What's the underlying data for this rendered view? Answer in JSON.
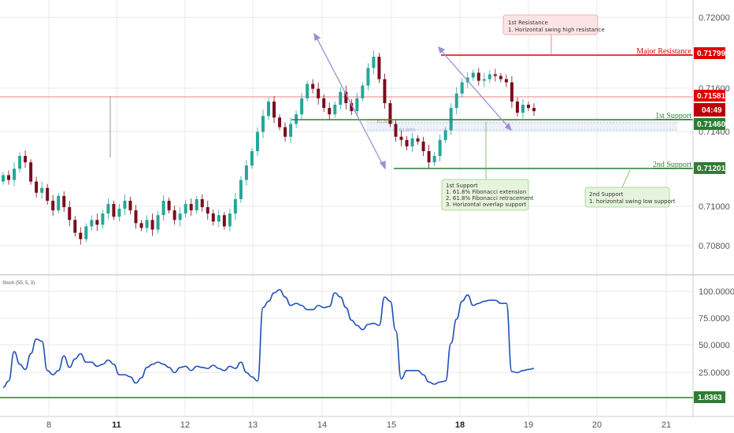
{
  "chart_data": [
    {
      "type": "candlestick",
      "x_ticks": [
        "8",
        "11",
        "12",
        "13",
        "14",
        "15",
        "18",
        "19",
        "20",
        "21"
      ],
      "x_ticks_bold": [
        "11",
        "18"
      ],
      "y_ticks": [
        "0.72000",
        "0.71600",
        "0.71400",
        "0.71000",
        "0.70800"
      ],
      "ylim": [
        0.7071,
        0.7225
      ],
      "colors": {
        "up": "#26a69a",
        "down": "#7a0d1d",
        "grid": "#e3e3e3"
      },
      "candles_close": [
        0.7118,
        0.7115,
        0.7122,
        0.713,
        0.7126,
        0.7114,
        0.7107,
        0.711,
        0.7102,
        0.7096,
        0.7105,
        0.7098,
        0.709,
        0.7082,
        0.7078,
        0.7086,
        0.709,
        0.7087,
        0.7094,
        0.71,
        0.7092,
        0.7097,
        0.7102,
        0.7096,
        0.7088,
        0.7085,
        0.709,
        0.7084,
        0.7093,
        0.7102,
        0.7096,
        0.709,
        0.7094,
        0.71,
        0.7096,
        0.7103,
        0.7098,
        0.7094,
        0.7089,
        0.7093,
        0.7086,
        0.7094,
        0.7103,
        0.7115,
        0.7124,
        0.7133,
        0.7145,
        0.7155,
        0.7164,
        0.7154,
        0.7148,
        0.7142,
        0.715,
        0.7156,
        0.7166,
        0.7175,
        0.7172,
        0.7166,
        0.716,
        0.7156,
        0.7162,
        0.717,
        0.7163,
        0.7158,
        0.7166,
        0.7174,
        0.7185,
        0.7192,
        0.7178,
        0.7163,
        0.715,
        0.7142,
        0.714,
        0.7136,
        0.7141,
        0.7139,
        0.7133,
        0.7126,
        0.713,
        0.714,
        0.7146,
        0.716,
        0.7169,
        0.7176,
        0.7179,
        0.7182,
        0.7177,
        0.7178,
        0.7181,
        0.718,
        0.7178,
        0.7176,
        0.7164,
        0.7157,
        0.7162,
        0.716,
        0.7158
      ],
      "levels": [
        {
          "label": "Major Resistance",
          "value": "0.71799",
          "color": "#e00000"
        },
        {
          "label": "1st Support",
          "value": "0.71460",
          "color": "#2e7d32"
        },
        {
          "label": "2nd Support",
          "value": "0.71201",
          "color": "#2e7d32"
        }
      ],
      "current_price": {
        "value": "0.71581",
        "countdown": "04:49",
        "color": "#e00000"
      },
      "fib_labels": [
        "61.80%",
        "61.80%"
      ],
      "callouts": {
        "resistance": [
          "1st Resistance",
          "1. Horizontal swing high resistance"
        ],
        "support1": [
          "1st Support",
          "1. 61.8% Fibonacci extension",
          "2. 61.8% Fibonacci retracement",
          "3. Horizontal overlap support"
        ],
        "support2": [
          "2nd Support",
          "1. horizontal swing low support"
        ]
      }
    },
    {
      "type": "line",
      "title": "Stoch (55, 5, 3)",
      "y_ticks": [
        "100.0000",
        "75.0000",
        "50.0000",
        "25.0000"
      ],
      "ylim": [
        0,
        105
      ],
      "series": [
        {
          "values": [
            6,
            12,
            40,
            28,
            23,
            38,
            52,
            50,
            22,
            18,
            22,
            36,
            25,
            33,
            38,
            30,
            30,
            26,
            28,
            32,
            28,
            18,
            18,
            16,
            10,
            15,
            25,
            28,
            30,
            28,
            25,
            20,
            25,
            26,
            22,
            26,
            25,
            24,
            27,
            24,
            22,
            26,
            24,
            30,
            20,
            16,
            12,
            82,
            88,
            96,
            99,
            92,
            84,
            86,
            84,
            80,
            80,
            84,
            82,
            83,
            96,
            92,
            82,
            70,
            65,
            61,
            66,
            67,
            65,
            92,
            88,
            60,
            14,
            22,
            22,
            22,
            18,
            11,
            9,
            11,
            12,
            48,
            71,
            88,
            94,
            84,
            86,
            88,
            89,
            89,
            86,
            86,
            21,
            20,
            22,
            23,
            24
          ],
          "color": "#1f4fb8"
        }
      ],
      "marker_label": "1.8363",
      "marker_color": "#2e7d32"
    }
  ]
}
